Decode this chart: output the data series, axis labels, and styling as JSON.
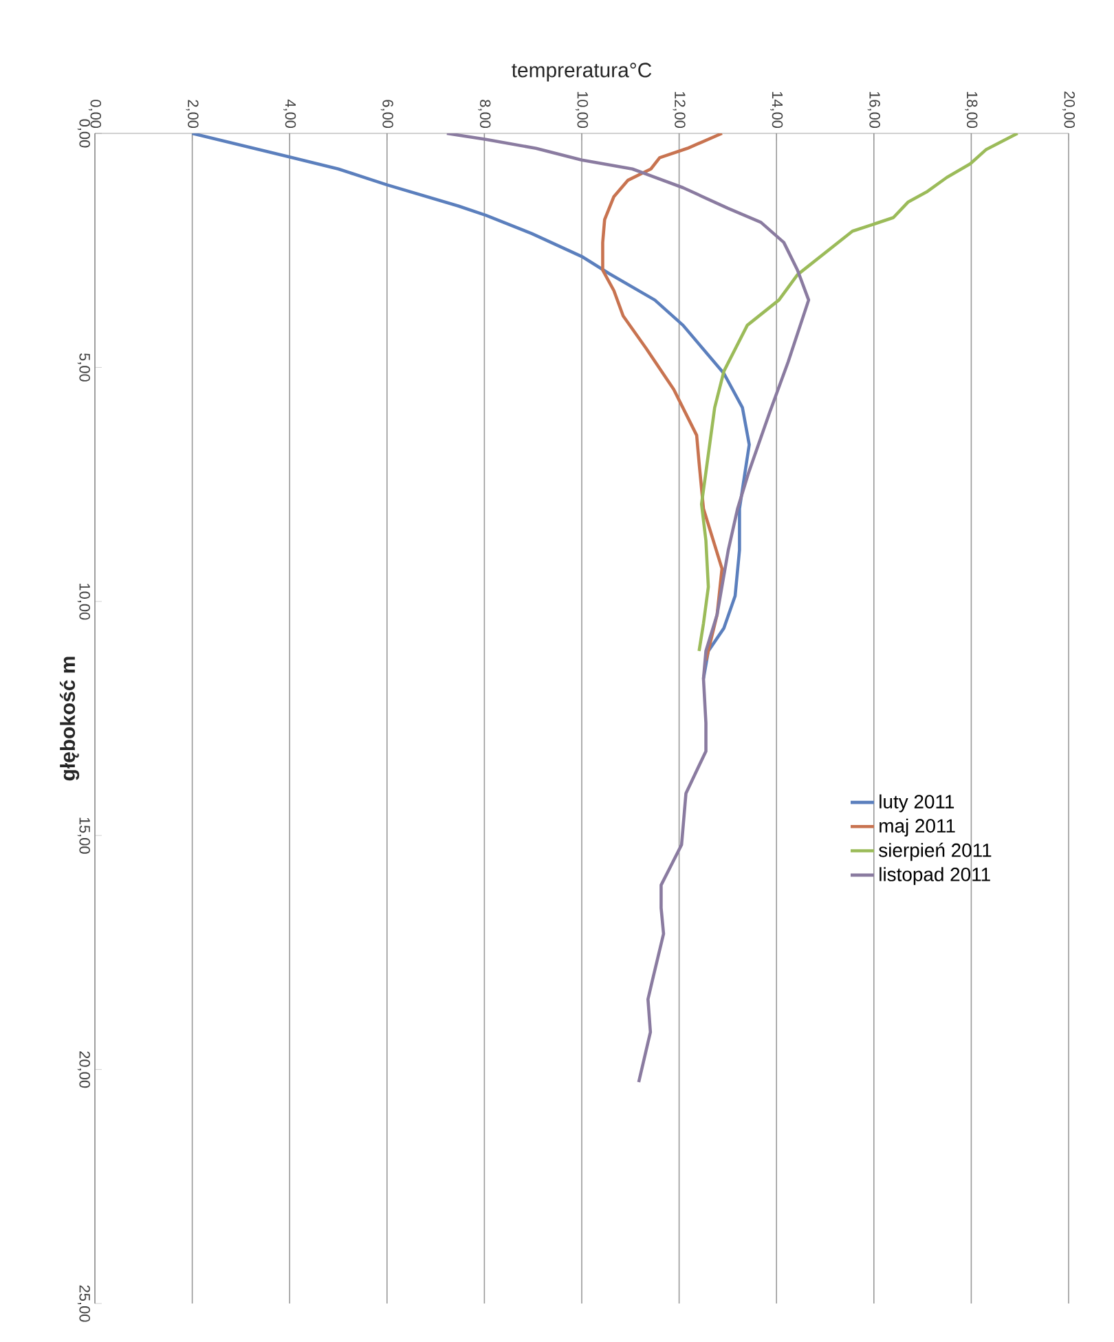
{
  "chart_data": {
    "type": "line",
    "xlabel": "tempreratura°C",
    "ylabel": "głębokość m",
    "xlim": [
      0,
      20
    ],
    "ylim": [
      25,
      0
    ],
    "xticks": [
      {
        "value": 0,
        "label": "0,00"
      },
      {
        "value": 2,
        "label": "2,00"
      },
      {
        "value": 4,
        "label": "4,00"
      },
      {
        "value": 6,
        "label": "6,00"
      },
      {
        "value": 8,
        "label": "8,00"
      },
      {
        "value": 10,
        "label": "10,00"
      },
      {
        "value": 12,
        "label": "12,00"
      },
      {
        "value": 14,
        "label": "14,00"
      },
      {
        "value": 16,
        "label": "16,00"
      },
      {
        "value": 18,
        "label": "18,00"
      },
      {
        "value": 20,
        "label": "20,00"
      }
    ],
    "yticks": [
      {
        "value": 0,
        "label": "0,00"
      },
      {
        "value": 5,
        "label": "5,00"
      },
      {
        "value": 10,
        "label": "10,00"
      },
      {
        "value": 15,
        "label": "15,00"
      },
      {
        "value": 20,
        "label": "20,00"
      },
      {
        "value": 25,
        "label": "25,00"
      }
    ],
    "grid": "x",
    "legend": "right",
    "marker": "none",
    "line_style": "solid",
    "series": [
      {
        "name": "luty 2011",
        "color": "#5b7fbd",
        "x": [
          2.0,
          3.98,
          5.0,
          6.0,
          7.46,
          8.03,
          8.97,
          10.0,
          10.57,
          11.5,
          12.08,
          12.92,
          13.3,
          13.44,
          13.34,
          13.24,
          13.24,
          13.15,
          12.92,
          12.6,
          12.5
        ],
        "values": [
          0,
          0.5,
          0.76,
          1.1,
          1.55,
          1.75,
          2.14,
          2.63,
          3.0,
          3.56,
          4.1,
          5.13,
          5.86,
          6.65,
          7.33,
          8.02,
          8.9,
          9.88,
          10.57,
          11.06,
          11.65
        ]
      },
      {
        "name": "maj 2011",
        "color": "#c87350",
        "x": [
          12.88,
          12.17,
          11.6,
          11.42,
          10.95,
          10.66,
          10.47,
          10.43,
          10.43,
          10.66,
          10.85,
          11.32,
          11.89,
          12.36,
          12.41,
          12.5,
          12.88,
          12.78,
          12.55
        ],
        "values": [
          0,
          0.32,
          0.52,
          0.76,
          1.0,
          1.35,
          1.84,
          2.33,
          2.92,
          3.36,
          3.9,
          4.59,
          5.47,
          6.45,
          7.04,
          8.02,
          9.3,
          10.28,
          11.26
        ]
      },
      {
        "name": "sierpień 2011",
        "color": "#9bbb59",
        "x": [
          18.95,
          18.3,
          17.98,
          17.5,
          17.1,
          16.7,
          16.4,
          15.56,
          14.43,
          14.05,
          13.4,
          12.92,
          12.73,
          12.55,
          12.46,
          12.55,
          12.6,
          12.5,
          12.41
        ],
        "values": [
          0,
          0.35,
          0.65,
          0.94,
          1.24,
          1.47,
          1.8,
          2.09,
          3.02,
          3.56,
          4.1,
          5.08,
          5.86,
          7.24,
          7.92,
          8.7,
          9.69,
          10.47,
          11.06
        ]
      },
      {
        "name": "listopad 2011",
        "color": "#8a7ba0",
        "x": [
          7.23,
          8.03,
          9.06,
          10.0,
          11.04,
          12.08,
          13.0,
          13.68,
          14.15,
          14.43,
          14.66,
          14.24,
          13.86,
          13.43,
          13.2,
          13.01,
          12.78,
          12.55,
          12.5,
          12.55,
          12.55,
          12.14,
          12.05,
          11.63,
          11.63,
          11.68,
          11.45,
          11.36,
          11.41,
          11.17
        ],
        "values": [
          0,
          0.13,
          0.32,
          0.57,
          0.76,
          1.16,
          1.6,
          1.9,
          2.33,
          2.92,
          3.56,
          4.88,
          5.96,
          7.24,
          8.02,
          8.9,
          10.28,
          11.06,
          11.65,
          12.6,
          13.2,
          14.1,
          15.2,
          16.06,
          16.55,
          17.1,
          18.1,
          18.5,
          19.2,
          20.27
        ]
      }
    ]
  }
}
